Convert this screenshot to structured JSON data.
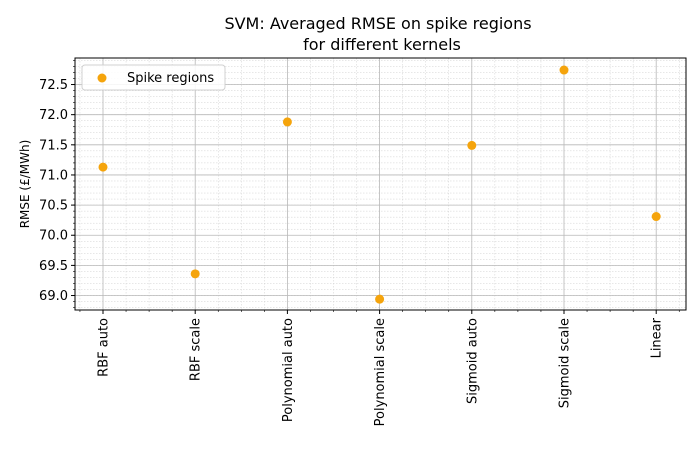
{
  "chart_data": {
    "type": "scatter",
    "title_lines": [
      "SVM: Averaged RMSE on spike regions",
      "for different kernels"
    ],
    "xlabel": "",
    "ylabel": "RMSE (£/MWh)",
    "categories": [
      "RBF auto",
      "RBF scale",
      "Polynomial auto",
      "Polynomial scale",
      "Sigmoid auto",
      "Sigmoid scale",
      "Linear"
    ],
    "series": [
      {
        "name": "Spike regions",
        "color": "#f5a40c",
        "values": [
          71.13,
          69.36,
          71.88,
          68.94,
          71.49,
          72.74,
          70.31
        ]
      }
    ],
    "ylim": [
      68.76,
      72.94
    ],
    "yticks": [
      69.0,
      69.5,
      70.0,
      70.5,
      71.0,
      71.5,
      72.0,
      72.5
    ],
    "ytick_labels": [
      "69.0",
      "69.5",
      "70.0",
      "70.5",
      "71.0",
      "71.5",
      "72.0",
      "72.5"
    ],
    "grid": true,
    "minor_grid": true,
    "legend_position": "upper-left"
  }
}
